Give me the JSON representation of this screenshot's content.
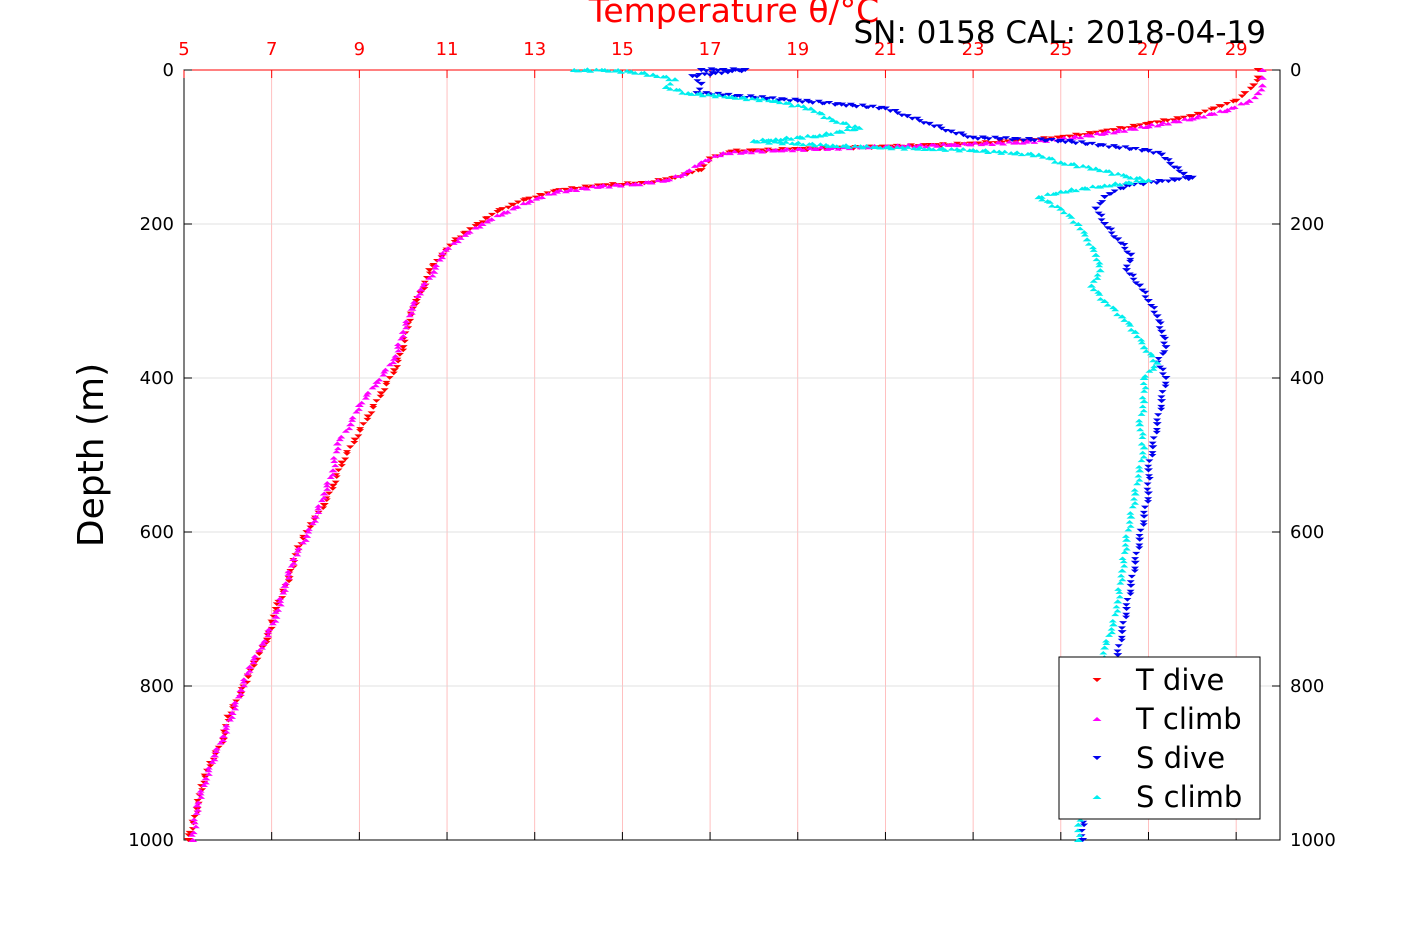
{
  "chart_data": {
    "type": "scatter",
    "title": "Temperature θ/°C",
    "subtitle": "SN: 0158  CAL: 2018-04-19",
    "xlabel": "Temperature θ/°C",
    "ylabel": "Depth (m)",
    "xlim": [
      5,
      30
    ],
    "ylim": [
      0,
      1000
    ],
    "y_reversed": true,
    "x_ticks": [
      "5",
      "7",
      "9",
      "11",
      "13",
      "15",
      "17",
      "19",
      "21",
      "23",
      "25",
      "27",
      "29"
    ],
    "y_ticks": [
      "0",
      "200",
      "400",
      "600",
      "800",
      "1000"
    ],
    "grid": true,
    "legend_position": "bottom-right",
    "colors": {
      "t_dive": "#ff0000",
      "t_climb": "#ff00ff",
      "s_dive": "#0000ee",
      "s_climb": "#00eeee",
      "axis_top": "#ff0000",
      "axis": "#000000",
      "grid": "#d9d9d9",
      "grid_top": "#ffb0b0"
    },
    "series": [
      {
        "name": "T dive",
        "marker": "triangle-down",
        "color": "#ff0000",
        "points": [
          [
            29.5,
            0
          ],
          [
            29.5,
            10
          ],
          [
            29.4,
            20
          ],
          [
            29.2,
            30
          ],
          [
            29.0,
            40
          ],
          [
            28.5,
            50
          ],
          [
            28.0,
            60
          ],
          [
            27.0,
            70
          ],
          [
            26.0,
            80
          ],
          [
            25.0,
            88
          ],
          [
            24.0,
            92
          ],
          [
            23.0,
            96
          ],
          [
            21.0,
            100
          ],
          [
            19.0,
            103
          ],
          [
            17.5,
            106
          ],
          [
            17.0,
            115
          ],
          [
            16.8,
            130
          ],
          [
            16.2,
            140
          ],
          [
            15.5,
            147
          ],
          [
            14.5,
            150
          ],
          [
            13.5,
            157
          ],
          [
            12.8,
            168
          ],
          [
            12.2,
            182
          ],
          [
            11.7,
            200
          ],
          [
            11.2,
            220
          ],
          [
            10.9,
            240
          ],
          [
            10.6,
            260
          ],
          [
            10.5,
            280
          ],
          [
            10.3,
            300
          ],
          [
            10.1,
            330
          ],
          [
            10.0,
            360
          ],
          [
            9.8,
            390
          ],
          [
            9.5,
            420
          ],
          [
            9.2,
            450
          ],
          [
            8.9,
            480
          ],
          [
            8.6,
            510
          ],
          [
            8.4,
            540
          ],
          [
            8.2,
            565
          ],
          [
            7.9,
            590
          ],
          [
            7.6,
            620
          ],
          [
            7.4,
            660
          ],
          [
            7.1,
            700
          ],
          [
            6.9,
            740
          ],
          [
            6.6,
            770
          ],
          [
            6.3,
            810
          ],
          [
            6.0,
            840
          ],
          [
            5.9,
            870
          ],
          [
            5.6,
            900
          ],
          [
            5.4,
            930
          ],
          [
            5.3,
            960
          ],
          [
            5.1,
            1000
          ]
        ]
      },
      {
        "name": "T climb",
        "marker": "triangle-up",
        "color": "#ff00ff",
        "points": [
          [
            29.6,
            0
          ],
          [
            29.6,
            10
          ],
          [
            29.6,
            20
          ],
          [
            29.5,
            30
          ],
          [
            29.3,
            40
          ],
          [
            28.8,
            52
          ],
          [
            28.0,
            63
          ],
          [
            27.0,
            73
          ],
          [
            26.0,
            82
          ],
          [
            25.0,
            90
          ],
          [
            24.0,
            94
          ],
          [
            22.5,
            97
          ],
          [
            20.5,
            100
          ],
          [
            18.5,
            104
          ],
          [
            17.3,
            108
          ],
          [
            16.8,
            120
          ],
          [
            16.4,
            135
          ],
          [
            16.0,
            143
          ],
          [
            15.3,
            148
          ],
          [
            14.5,
            151
          ],
          [
            13.5,
            158
          ],
          [
            12.9,
            170
          ],
          [
            12.3,
            185
          ],
          [
            11.8,
            200
          ],
          [
            11.3,
            218
          ],
          [
            10.9,
            238
          ],
          [
            10.7,
            262
          ],
          [
            10.4,
            285
          ],
          [
            10.2,
            310
          ],
          [
            10.0,
            340
          ],
          [
            9.8,
            375
          ],
          [
            9.4,
            405
          ],
          [
            9.0,
            435
          ],
          [
            8.8,
            460
          ],
          [
            8.5,
            485
          ],
          [
            8.4,
            520
          ],
          [
            8.2,
            550
          ],
          [
            8.0,
            580
          ],
          [
            7.8,
            605
          ],
          [
            7.5,
            635
          ],
          [
            7.3,
            670
          ],
          [
            7.1,
            710
          ],
          [
            6.8,
            745
          ],
          [
            6.5,
            775
          ],
          [
            6.3,
            805
          ],
          [
            6.1,
            835
          ],
          [
            5.9,
            865
          ],
          [
            5.7,
            890
          ],
          [
            5.5,
            920
          ],
          [
            5.3,
            955
          ],
          [
            5.2,
            1000
          ]
        ]
      },
      {
        "name": "S dive",
        "marker": "triangle-down",
        "color": "#0000ee",
        "points": [
          [
            16.8,
            0
          ],
          [
            17.3,
            0
          ],
          [
            17.8,
            0
          ],
          [
            16.6,
            8
          ],
          [
            16.8,
            18
          ],
          [
            16.7,
            30
          ],
          [
            19.0,
            40
          ],
          [
            20.0,
            45
          ],
          [
            21.0,
            50
          ],
          [
            21.5,
            60
          ],
          [
            22.0,
            70
          ],
          [
            22.5,
            80
          ],
          [
            23.0,
            88
          ],
          [
            25.0,
            92
          ],
          [
            27.0,
            105
          ],
          [
            27.3,
            110
          ],
          [
            27.5,
            122
          ],
          [
            27.8,
            135
          ],
          [
            28.0,
            140
          ],
          [
            26.5,
            150
          ],
          [
            26.0,
            165
          ],
          [
            25.8,
            180
          ],
          [
            26.0,
            200
          ],
          [
            26.3,
            220
          ],
          [
            26.6,
            240
          ],
          [
            26.5,
            260
          ],
          [
            26.8,
            280
          ],
          [
            27.0,
            300
          ],
          [
            27.2,
            320
          ],
          [
            27.3,
            340
          ],
          [
            27.4,
            360
          ],
          [
            27.2,
            380
          ],
          [
            27.4,
            400
          ],
          [
            27.3,
            430
          ],
          [
            27.2,
            460
          ],
          [
            27.1,
            490
          ],
          [
            27.0,
            520
          ],
          [
            27.0,
            550
          ],
          [
            26.9,
            580
          ],
          [
            26.8,
            610
          ],
          [
            26.7,
            640
          ],
          [
            26.6,
            670
          ],
          [
            26.5,
            700
          ],
          [
            26.4,
            730
          ],
          [
            26.3,
            760
          ],
          [
            26.1,
            790
          ],
          [
            26.0,
            820
          ],
          [
            25.9,
            850
          ],
          [
            25.8,
            880
          ],
          [
            25.7,
            910
          ],
          [
            25.6,
            940
          ],
          [
            25.5,
            970
          ],
          [
            25.5,
            1000
          ]
        ]
      },
      {
        "name": "S climb",
        "marker": "triangle-up",
        "color": "#00eeee",
        "points": [
          [
            13.9,
            0
          ],
          [
            14.6,
            0
          ],
          [
            15.2,
            2
          ],
          [
            15.7,
            6
          ],
          [
            16.2,
            12
          ],
          [
            16.0,
            22
          ],
          [
            16.5,
            30
          ],
          [
            17.5,
            35
          ],
          [
            18.5,
            40
          ],
          [
            19.3,
            50
          ],
          [
            19.8,
            65
          ],
          [
            20.4,
            75
          ],
          [
            19.5,
            85
          ],
          [
            18.5,
            90
          ],
          [
            18.0,
            92
          ],
          [
            19.8,
            98
          ],
          [
            20.8,
            100
          ],
          [
            22.0,
            102
          ],
          [
            23.0,
            104
          ],
          [
            24.5,
            110
          ],
          [
            25.0,
            120
          ],
          [
            25.8,
            128
          ],
          [
            26.5,
            138
          ],
          [
            27.0,
            143
          ],
          [
            26.0,
            150
          ],
          [
            25.0,
            158
          ],
          [
            24.5,
            165
          ],
          [
            25.0,
            180
          ],
          [
            25.4,
            200
          ],
          [
            25.6,
            220
          ],
          [
            25.8,
            240
          ],
          [
            25.9,
            260
          ],
          [
            25.7,
            280
          ],
          [
            26.0,
            300
          ],
          [
            26.4,
            320
          ],
          [
            26.7,
            340
          ],
          [
            26.9,
            360
          ],
          [
            27.2,
            380
          ],
          [
            26.9,
            400
          ],
          [
            26.9,
            430
          ],
          [
            26.8,
            460
          ],
          [
            26.9,
            490
          ],
          [
            26.8,
            520
          ],
          [
            26.7,
            550
          ],
          [
            26.6,
            580
          ],
          [
            26.5,
            610
          ],
          [
            26.4,
            650
          ],
          [
            26.3,
            690
          ],
          [
            26.2,
            720
          ],
          [
            26.0,
            750
          ],
          [
            25.9,
            780
          ],
          [
            25.7,
            820
          ],
          [
            25.7,
            860
          ],
          [
            25.6,
            900
          ],
          [
            25.5,
            940
          ],
          [
            25.4,
            980
          ],
          [
            25.4,
            1000
          ]
        ]
      }
    ]
  }
}
